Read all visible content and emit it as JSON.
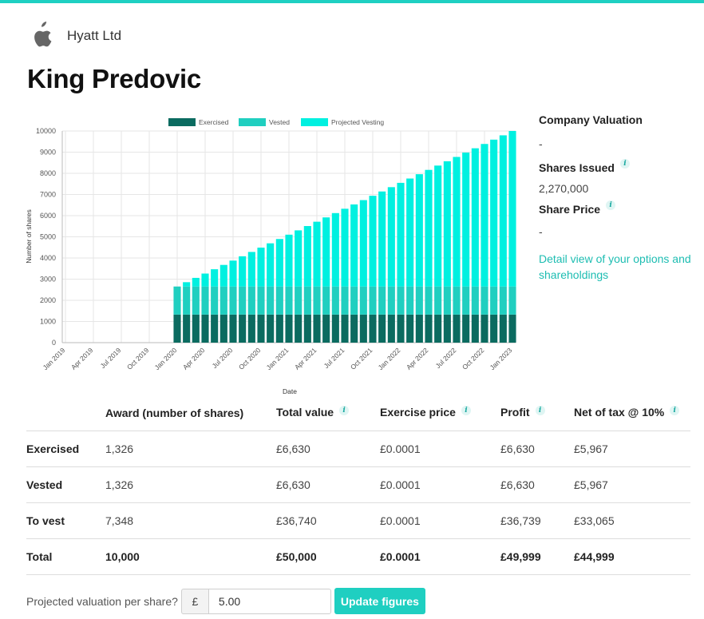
{
  "company": {
    "name": "Hyatt Ltd",
    "logo_icon": "apple-icon"
  },
  "person_name": "King Predovic",
  "colors": {
    "accent": "#1fd0c2",
    "exercised": "#0b6b60",
    "vested": "#20cfc0",
    "projected": "#00f0e0"
  },
  "side": {
    "valuation_label": "Company Valuation",
    "valuation_value": "-",
    "shares_issued_label": "Shares Issued",
    "shares_issued_value": "2,270,000",
    "share_price_label": "Share Price",
    "share_price_value": "-",
    "detail_link": "Detail view of your options and shareholdings",
    "info_glyph": "i"
  },
  "chart_data": {
    "type": "bar",
    "stacked": true,
    "xlabel": "Date",
    "ylabel": "Number of shares",
    "ylim": [
      0,
      10000
    ],
    "y_ticks": [
      0,
      1000,
      2000,
      3000,
      4000,
      5000,
      6000,
      7000,
      8000,
      9000,
      10000
    ],
    "grid": true,
    "legend_position": "top-center",
    "tick_labels": [
      "Jan 2019",
      "Apr 2019",
      "Jul 2019",
      "Oct 2019",
      "Jan 2020",
      "Apr 2020",
      "Jul 2020",
      "Oct 2020",
      "Jan 2021",
      "Apr 2021",
      "Jul 2021",
      "Oct 2021",
      "Jan 2022",
      "Apr 2022",
      "Jul 2022",
      "Oct 2022",
      "Jan 2023"
    ],
    "x_start": "Jan 2019",
    "x_end": "Jan 2023",
    "first_bar": "Jan 2020",
    "series": [
      {
        "name": "Exercised",
        "color": "#0b6b60",
        "values": [
          1326,
          1326,
          1326,
          1326,
          1326,
          1326,
          1326,
          1326,
          1326,
          1326,
          1326,
          1326,
          1326,
          1326,
          1326,
          1326,
          1326,
          1326,
          1326,
          1326,
          1326,
          1326,
          1326,
          1326,
          1326,
          1326,
          1326,
          1326,
          1326,
          1326,
          1326,
          1326,
          1326,
          1326,
          1326,
          1326,
          1326
        ]
      },
      {
        "name": "Vested",
        "color": "#20cfc0",
        "values": [
          1326,
          1326,
          1326,
          1326,
          1326,
          1326,
          1326,
          1326,
          1326,
          1326,
          1326,
          1326,
          1326,
          1326,
          1326,
          1326,
          1326,
          1326,
          1326,
          1326,
          1326,
          1326,
          1326,
          1326,
          1326,
          1326,
          1326,
          1326,
          1326,
          1326,
          1326,
          1326,
          1326,
          1326,
          1326,
          1326,
          1326
        ]
      },
      {
        "name": "Projected Vesting",
        "color": "#00f0e0",
        "values": [
          0,
          204,
          408,
          612,
          816,
          1020,
          1224,
          1429,
          1633,
          1837,
          2041,
          2245,
          2449,
          2653,
          2857,
          3061,
          3265,
          3469,
          3674,
          3878,
          4082,
          4286,
          4490,
          4694,
          4898,
          5102,
          5306,
          5510,
          5714,
          5918,
          6122,
          6327,
          6531,
          6735,
          6939,
          7143,
          7348
        ]
      }
    ]
  },
  "table": {
    "headers": [
      "",
      "Award (number of shares)",
      "Total value",
      "Exercise price",
      "Profit",
      "Net of tax @ 10%"
    ],
    "info_cols": [
      false,
      false,
      true,
      true,
      true,
      true
    ],
    "rows": [
      {
        "label": "Exercised",
        "cells": [
          "1,326",
          "£6,630",
          "£0.0001",
          "£6,630",
          "£5,967"
        ]
      },
      {
        "label": "Vested",
        "cells": [
          "1,326",
          "£6,630",
          "£0.0001",
          "£6,630",
          "£5,967"
        ]
      },
      {
        "label": "To vest",
        "cells": [
          "7,348",
          "£36,740",
          "£0.0001",
          "£36,739",
          "£33,065"
        ]
      }
    ],
    "total": {
      "label": "Total",
      "cells": [
        "10,000",
        "£50,000",
        "£0.0001",
        "£49,999",
        "£44,999"
      ]
    }
  },
  "projection": {
    "label": "Projected valuation per share?",
    "currency": "£",
    "value": "5.00",
    "button": "Update figures"
  }
}
